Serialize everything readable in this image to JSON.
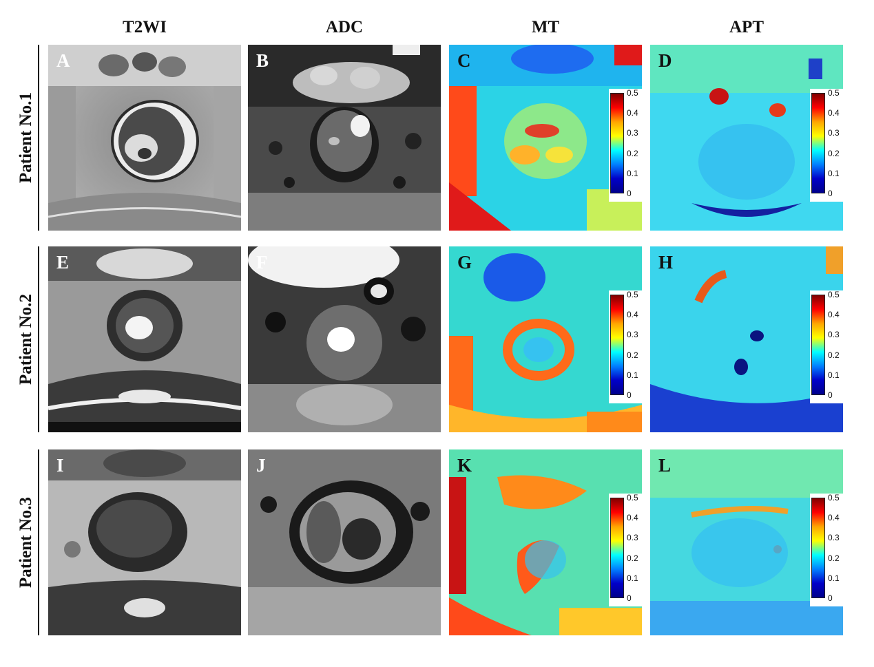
{
  "columns": [
    "T2WI",
    "ADC",
    "MT",
    "APT"
  ],
  "rows": [
    "Patient No.1",
    "Patient No.2",
    "Patient No.3"
  ],
  "panels": {
    "A": "A",
    "B": "B",
    "C": "C",
    "D": "D",
    "E": "E",
    "F": "F",
    "G": "G",
    "H": "H",
    "I": "I",
    "J": "J",
    "K": "K",
    "L": "L"
  },
  "colorbar": {
    "ticks": [
      "0.5",
      "0.4",
      "0.3",
      "0.2",
      "0.1",
      "0"
    ],
    "colormap": [
      "#800000",
      "#ff0000",
      "#ffa500",
      "#ffff00",
      "#00ffff",
      "#0080ff",
      "#0000c8",
      "#00008b"
    ]
  }
}
